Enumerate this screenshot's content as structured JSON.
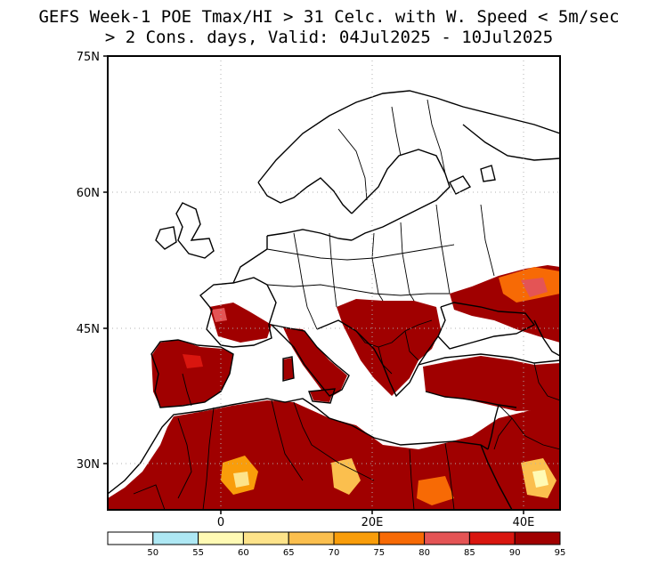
{
  "title": {
    "line1": "GEFS Week-1 POE Tmax/HI > 31 Celc. with W. Speed < 5m/sec",
    "line2": "> 2 Cons. days, Valid: 04Jul2025 - 10Jul2025"
  },
  "axes": {
    "lat_labels": [
      "75N",
      "60N",
      "45N",
      "30N"
    ],
    "lon_labels": [
      "0",
      "20E",
      "40E"
    ],
    "lat_range": [
      25,
      75
    ],
    "lon_range": [
      -15,
      45
    ],
    "grid": "dotted"
  },
  "colorbar": {
    "labels": [
      "50",
      "55",
      "60",
      "65",
      "70",
      "75",
      "80",
      "85",
      "90",
      "95"
    ],
    "colors": [
      "#ffffff",
      "#aee8f4",
      "#fffab4",
      "#fde38a",
      "#fbbf4e",
      "#f99d0a",
      "#f76a05",
      "#e45455",
      "#d9160f",
      "#a00000"
    ]
  },
  "colors": {
    "high_probability": "#a00000",
    "coastline": "#000000",
    "ocean": "#ffffff"
  }
}
